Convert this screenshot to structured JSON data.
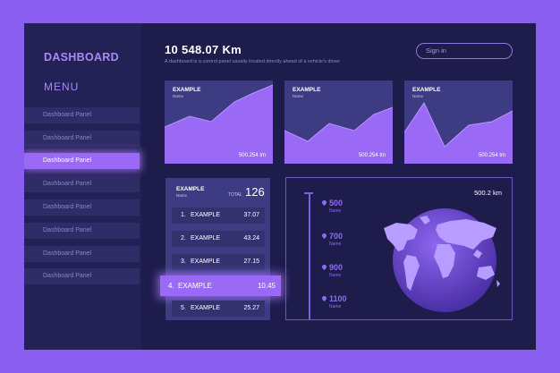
{
  "sidebar": {
    "brand": "DASHBOARD",
    "menu_title": "MENU",
    "items": [
      {
        "label": "Dashboard Panel",
        "active": false
      },
      {
        "label": "Dashboard Panel",
        "active": false
      },
      {
        "label": "Dashboard Panel",
        "active": true
      },
      {
        "label": "Dashboard Panel",
        "active": false
      },
      {
        "label": "Dashboard Panel",
        "active": false
      },
      {
        "label": "Dashboard Panel",
        "active": false
      },
      {
        "label": "Dashboard Panel",
        "active": false
      },
      {
        "label": "Dashboard Panel",
        "active": false
      }
    ]
  },
  "header": {
    "value": "10 548.07 Km",
    "subtitle": "A dashboard is a control panel usually located directly ahead of a vehicle's driver",
    "signin_label": "Sign in"
  },
  "charts": [
    {
      "title": "EXAMPLE",
      "subtitle": "Name",
      "value": "500.254 tm"
    },
    {
      "title": "EXAMPLE",
      "subtitle": "Name",
      "value": "500.254 tm"
    },
    {
      "title": "EXAMPLE",
      "subtitle": "Name",
      "value": "500.254 tm"
    }
  ],
  "list": {
    "title": "EXAMPLE",
    "subtitle": "Name",
    "total_label": "TOTAL",
    "total_value": "126",
    "rows": [
      {
        "index": "1.",
        "name": "EXAMPLE",
        "value": "37.07",
        "highlighted": false
      },
      {
        "index": "2.",
        "name": "EXAMPLE",
        "value": "43.24",
        "highlighted": false
      },
      {
        "index": "3.",
        "name": "EXAMPLE",
        "value": "27.15",
        "highlighted": false
      },
      {
        "index": "4.",
        "name": "EXAMPLE",
        "value": "10.45",
        "highlighted": true
      },
      {
        "index": "5.",
        "name": "EXAMPLE",
        "value": "25.27",
        "highlighted": false
      }
    ]
  },
  "map": {
    "distance": "500.2 km",
    "scale": [
      {
        "value": "500",
        "label": "Name",
        "icon": "map-pin-icon"
      },
      {
        "value": "700",
        "label": "Name",
        "icon": "map-pin-icon"
      },
      {
        "value": "900",
        "label": "Name",
        "icon": "map-pin-icon"
      },
      {
        "value": "1100",
        "label": "Name",
        "icon": "map-pin-icon"
      }
    ]
  },
  "colors": {
    "outer_background": "#8a5ef0",
    "panel_background": "#1d1c4a",
    "accent": "#9a6af6",
    "card": "#3d3c82"
  }
}
